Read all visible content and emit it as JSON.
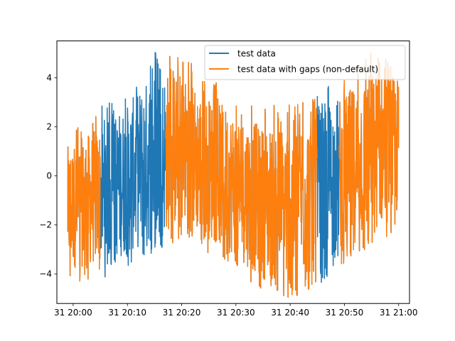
{
  "chart_data": {
    "type": "line",
    "title": "",
    "xlabel": "",
    "ylabel": "",
    "x_range": [
      "31 19:59",
      "31 21:00"
    ],
    "xlim": [
      "31 19:57",
      "31 21:02"
    ],
    "ylim": [
      -5.2,
      5.5
    ],
    "x_ticks": [
      "31 20:00",
      "31 20:10",
      "31 20:20",
      "31 20:30",
      "31 20:40",
      "31 20:50",
      "31 21:00"
    ],
    "y_ticks": [
      -4,
      -2,
      0,
      2,
      4
    ],
    "y_tick_labels": [
      "−4",
      "−2",
      "0",
      "2",
      "4"
    ],
    "grid": false,
    "legend_position": "top-right",
    "series": [
      {
        "name": "test data",
        "color": "#1f77b4",
        "envelope": {
          "time": [
            "31 19:59",
            "31 20:05",
            "31 20:10",
            "31 20:15",
            "31 20:20",
            "31 20:25",
            "31 20:30",
            "31 20:35",
            "31 20:40",
            "31 20:45",
            "31 20:50",
            "31 20:55",
            "31 21:00"
          ],
          "upper": [
            1.2,
            2.0,
            2.9,
            4.3,
            4.2,
            3.2,
            2.6,
            2.0,
            2.2,
            2.8,
            3.3,
            4.3,
            4.0
          ],
          "lower": [
            -3.8,
            -3.6,
            -3.2,
            -2.6,
            -2.0,
            -2.6,
            -3.3,
            -4.2,
            -4.5,
            -3.9,
            -3.0,
            -2.3,
            -1.6
          ]
        }
      },
      {
        "name": "test data with gaps (non-default)",
        "color": "#ff7f0e",
        "segments": [
          [
            "31 19:59",
            "31 20:05"
          ],
          [
            "31 20:17",
            "31 20:45"
          ],
          [
            "31 20:49",
            "31 21:00"
          ]
        ],
        "envelope": {
          "time": [
            "31 19:59",
            "31 20:05",
            "31 20:10",
            "31 20:15",
            "31 20:20",
            "31 20:25",
            "31 20:30",
            "31 20:35",
            "31 20:40",
            "31 20:45",
            "31 20:50",
            "31 20:55",
            "31 21:00"
          ],
          "upper": [
            1.2,
            2.0,
            2.9,
            4.3,
            4.2,
            3.2,
            2.6,
            2.0,
            2.2,
            2.8,
            3.3,
            4.3,
            4.0
          ],
          "lower": [
            -3.8,
            -3.6,
            -3.2,
            -2.6,
            -2.0,
            -2.6,
            -3.3,
            -4.2,
            -4.5,
            -3.9,
            -3.0,
            -2.3,
            -1.6
          ]
        }
      }
    ]
  }
}
